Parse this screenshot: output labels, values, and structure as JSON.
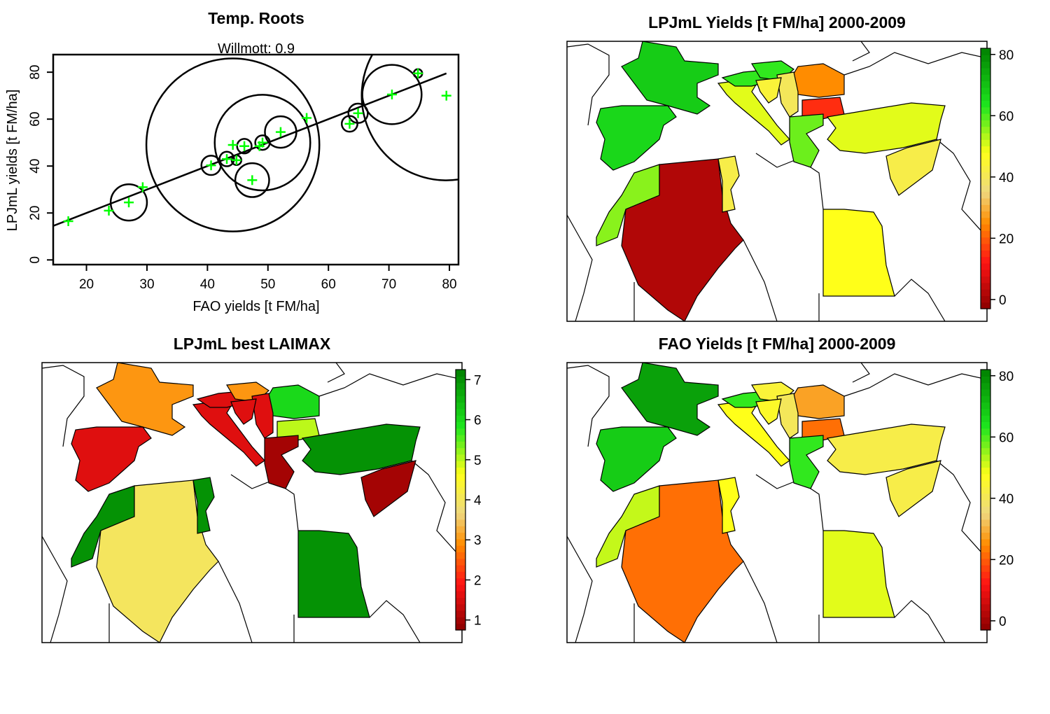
{
  "chart_data": [
    {
      "type": "scatter",
      "title": "Temp. Roots",
      "subtitle": "Willmott: 0.9",
      "xlabel": "FAO yields [t FM/ha]",
      "ylabel": "LPJmL yields [t FM/ha]",
      "xlim": [
        14.5,
        81.5
      ],
      "ylim": [
        -2,
        87.5
      ],
      "x_ticks": [
        20,
        30,
        40,
        50,
        60,
        70,
        80
      ],
      "y_ticks": [
        0,
        20,
        40,
        60,
        80
      ],
      "point_color": "#00ff00",
      "circle_color": "#000000",
      "points": [
        {
          "x": 17,
          "y": 16.5
        },
        {
          "x": 23.7,
          "y": 21
        },
        {
          "x": 27,
          "y": 24.5
        },
        {
          "x": 29.3,
          "y": 31
        },
        {
          "x": 40.6,
          "y": 40.3
        },
        {
          "x": 43.2,
          "y": 43
        },
        {
          "x": 44.2,
          "y": 49
        },
        {
          "x": 44.8,
          "y": 42.5
        },
        {
          "x": 46.1,
          "y": 48.5
        },
        {
          "x": 47.4,
          "y": 34
        },
        {
          "x": 48.6,
          "y": 48.5
        },
        {
          "x": 49.1,
          "y": 50
        },
        {
          "x": 52.1,
          "y": 54.5
        },
        {
          "x": 56.4,
          "y": 60.5
        },
        {
          "x": 63.5,
          "y": 58
        },
        {
          "x": 64.9,
          "y": 62.5
        },
        {
          "x": 70.5,
          "y": 70.5
        },
        {
          "x": 74.8,
          "y": 79.5
        },
        {
          "x": 79.5,
          "y": 70
        }
      ],
      "circles": [
        {
          "x": 27,
          "y": 24.5,
          "r": 3.0
        },
        {
          "x": 40.6,
          "y": 40.3,
          "r": 1.6
        },
        {
          "x": 43.2,
          "y": 43,
          "r": 1.2
        },
        {
          "x": 44.2,
          "y": 49,
          "r": 14.3
        },
        {
          "x": 44.8,
          "y": 42.5,
          "r": 0.8
        },
        {
          "x": 46.1,
          "y": 48.5,
          "r": 1.2
        },
        {
          "x": 47.4,
          "y": 34,
          "r": 2.8
        },
        {
          "x": 49.1,
          "y": 50,
          "r": 1.2
        },
        {
          "x": 49.1,
          "y": 50,
          "r": 7.9
        },
        {
          "x": 52.1,
          "y": 54.5,
          "r": 2.6
        },
        {
          "x": 63.5,
          "y": 58,
          "r": 1.3
        },
        {
          "x": 64.9,
          "y": 62.5,
          "r": 1.6
        },
        {
          "x": 70.5,
          "y": 70.5,
          "r": 4.9
        },
        {
          "x": 74.8,
          "y": 79.5,
          "r": 0.7
        },
        {
          "x": 79.5,
          "y": 70,
          "r": 14.0
        }
      ],
      "fit_line": [
        {
          "x": 14.5,
          "y": 14.5
        },
        {
          "x": 79.5,
          "y": 79.5
        }
      ]
    },
    {
      "type": "heatmap",
      "title": "LPJmL Yields [t FM/ha] 2000-2009",
      "legend_ticks": [
        0,
        20,
        40,
        60,
        80
      ],
      "legend_range": [
        -3,
        82
      ],
      "region_values": {
        "france": 68,
        "spain": 66,
        "morocco": 56,
        "algeria": 2,
        "tunisia": 42,
        "italy": 50,
        "austria": 62,
        "hungary": 62,
        "romania": 25,
        "bulgaria": 15,
        "serbia": 40,
        "croatia": 44,
        "greece": 58,
        "turkey": 50,
        "syria": 42,
        "egypt": 48
      }
    },
    {
      "type": "heatmap",
      "title": "LPJmL best LAIMAX",
      "legend_ticks": [
        1,
        2,
        3,
        4,
        5,
        6,
        7
      ],
      "legend_range": [
        0.75,
        7.25
      ],
      "region_values": {
        "france": 3,
        "spain": 1.6,
        "morocco": 7,
        "algeria": 4,
        "tunisia": 7,
        "italy": 1.6,
        "austria": 1.6,
        "hungary": 3,
        "romania": 6,
        "bulgaria": 5,
        "serbia": 1.6,
        "croatia": 1.6,
        "greece": 1,
        "turkey": 7,
        "syria": 1,
        "egypt": 7
      }
    },
    {
      "type": "heatmap",
      "title": "FAO Yields [t FM/ha] 2000-2009",
      "legend_ticks": [
        0,
        20,
        40,
        60,
        80
      ],
      "legend_range": [
        -3,
        82
      ],
      "region_values": {
        "france": 76,
        "spain": 68,
        "morocco": 52,
        "algeria": 22,
        "tunisia": 48,
        "italy": 48,
        "austria": 62,
        "hungary": 44,
        "romania": 28,
        "bulgaria": 22,
        "serbia": 40,
        "croatia": 46,
        "greece": 62,
        "turkey": 42,
        "syria": 42,
        "egypt": 50
      }
    }
  ]
}
